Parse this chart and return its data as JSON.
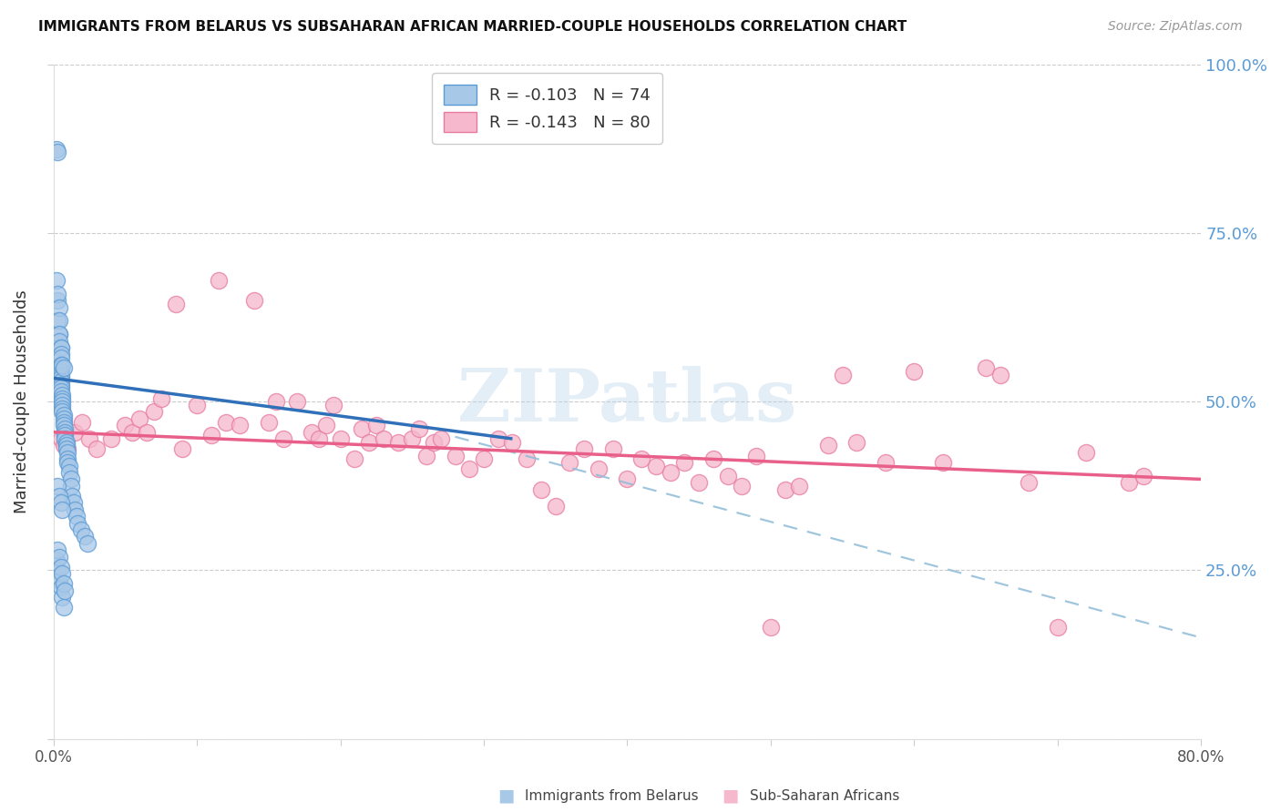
{
  "title": "IMMIGRANTS FROM BELARUS VS SUBSAHARAN AFRICAN MARRIED-COUPLE HOUSEHOLDS CORRELATION CHART",
  "source": "Source: ZipAtlas.com",
  "ylabel_left": "Married-couple Households",
  "xmin": 0.0,
  "xmax": 0.8,
  "ymin": 0.0,
  "ymax": 1.0,
  "legend_blue_R": "-0.103",
  "legend_blue_N": "74",
  "legend_pink_R": "-0.143",
  "legend_pink_N": "80",
  "blue_scatter_facecolor": "#a8c8e8",
  "blue_scatter_edgecolor": "#5b9bd5",
  "pink_scatter_facecolor": "#f5b8cc",
  "pink_scatter_edgecolor": "#e87aa0",
  "blue_line_color": "#3070b8",
  "pink_line_color": "#e8608a",
  "dashed_line_color": "#90bcd8",
  "watermark_text": "ZIPatlas",
  "watermark_color": "#b8d4ea",
  "blue_scatter_x": [
    0.002,
    0.003,
    0.002,
    0.003,
    0.003,
    0.004,
    0.003,
    0.004,
    0.004,
    0.004,
    0.004,
    0.005,
    0.005,
    0.005,
    0.005,
    0.005,
    0.005,
    0.005,
    0.005,
    0.005,
    0.005,
    0.005,
    0.005,
    0.005,
    0.006,
    0.006,
    0.006,
    0.006,
    0.006,
    0.006,
    0.006,
    0.007,
    0.007,
    0.007,
    0.007,
    0.007,
    0.008,
    0.008,
    0.008,
    0.008,
    0.009,
    0.009,
    0.009,
    0.01,
    0.01,
    0.01,
    0.011,
    0.011,
    0.012,
    0.012,
    0.013,
    0.014,
    0.015,
    0.016,
    0.017,
    0.019,
    0.022,
    0.024,
    0.002,
    0.003,
    0.004,
    0.005,
    0.006,
    0.007,
    0.003,
    0.004,
    0.005,
    0.006,
    0.007,
    0.008,
    0.003,
    0.004,
    0.005,
    0.006
  ],
  "blue_scatter_y": [
    0.875,
    0.87,
    0.68,
    0.65,
    0.62,
    0.6,
    0.66,
    0.64,
    0.62,
    0.6,
    0.59,
    0.58,
    0.58,
    0.57,
    0.565,
    0.555,
    0.55,
    0.545,
    0.54,
    0.535,
    0.53,
    0.525,
    0.52,
    0.515,
    0.51,
    0.505,
    0.5,
    0.495,
    0.49,
    0.485,
    0.555,
    0.48,
    0.475,
    0.47,
    0.465,
    0.55,
    0.46,
    0.455,
    0.45,
    0.445,
    0.44,
    0.435,
    0.43,
    0.425,
    0.415,
    0.41,
    0.405,
    0.395,
    0.385,
    0.375,
    0.36,
    0.35,
    0.34,
    0.33,
    0.32,
    0.31,
    0.3,
    0.29,
    0.265,
    0.25,
    0.235,
    0.225,
    0.21,
    0.195,
    0.28,
    0.27,
    0.255,
    0.245,
    0.23,
    0.22,
    0.375,
    0.36,
    0.35,
    0.34
  ],
  "pink_scatter_x": [
    0.005,
    0.007,
    0.01,
    0.015,
    0.02,
    0.025,
    0.03,
    0.04,
    0.05,
    0.055,
    0.06,
    0.065,
    0.07,
    0.075,
    0.085,
    0.09,
    0.1,
    0.11,
    0.115,
    0.12,
    0.13,
    0.14,
    0.15,
    0.155,
    0.16,
    0.17,
    0.18,
    0.185,
    0.19,
    0.195,
    0.2,
    0.21,
    0.215,
    0.22,
    0.225,
    0.23,
    0.24,
    0.25,
    0.255,
    0.26,
    0.265,
    0.27,
    0.28,
    0.29,
    0.3,
    0.31,
    0.32,
    0.33,
    0.34,
    0.35,
    0.36,
    0.37,
    0.38,
    0.39,
    0.4,
    0.41,
    0.42,
    0.43,
    0.44,
    0.45,
    0.46,
    0.47,
    0.48,
    0.49,
    0.5,
    0.51,
    0.52,
    0.54,
    0.55,
    0.56,
    0.58,
    0.6,
    0.62,
    0.65,
    0.66,
    0.68,
    0.7,
    0.72,
    0.75,
    0.76
  ],
  "pink_scatter_y": [
    0.445,
    0.435,
    0.43,
    0.455,
    0.47,
    0.445,
    0.43,
    0.445,
    0.465,
    0.455,
    0.475,
    0.455,
    0.485,
    0.505,
    0.645,
    0.43,
    0.495,
    0.45,
    0.68,
    0.47,
    0.465,
    0.65,
    0.47,
    0.5,
    0.445,
    0.5,
    0.455,
    0.445,
    0.465,
    0.495,
    0.445,
    0.415,
    0.46,
    0.44,
    0.465,
    0.445,
    0.44,
    0.445,
    0.46,
    0.42,
    0.44,
    0.445,
    0.42,
    0.4,
    0.415,
    0.445,
    0.44,
    0.415,
    0.37,
    0.345,
    0.41,
    0.43,
    0.4,
    0.43,
    0.385,
    0.415,
    0.405,
    0.395,
    0.41,
    0.38,
    0.415,
    0.39,
    0.375,
    0.42,
    0.165,
    0.37,
    0.375,
    0.435,
    0.54,
    0.44,
    0.41,
    0.545,
    0.41,
    0.55,
    0.54,
    0.38,
    0.165,
    0.425,
    0.38,
    0.39
  ],
  "blue_line_x_start": 0.0,
  "blue_line_x_end": 0.32,
  "blue_line_y_start": 0.535,
  "blue_line_y_end": 0.445,
  "pink_line_x_start": 0.0,
  "pink_line_x_end": 0.8,
  "pink_line_y_start": 0.455,
  "pink_line_y_end": 0.385,
  "dashed_line_x_start": 0.28,
  "dashed_line_x_end": 0.8,
  "dashed_line_y_start": 0.448,
  "dashed_line_y_end": 0.15
}
